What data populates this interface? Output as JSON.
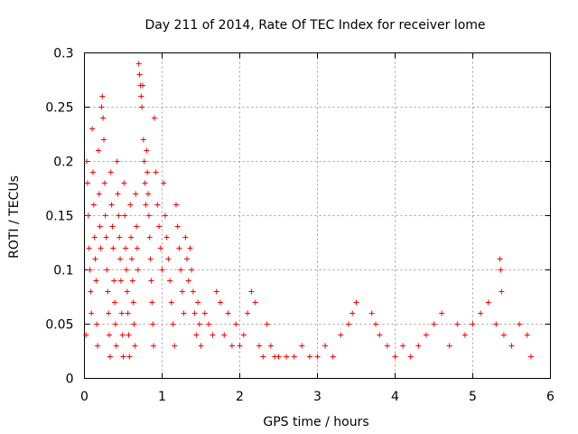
{
  "chart_data": {
    "type": "scatter",
    "title": "Day 211 of 2014, Rate Of TEC Index for receiver lome",
    "xlabel": "GPS time / hours",
    "ylabel": "ROTI / TECUs",
    "xlim": [
      0,
      6
    ],
    "ylim": [
      0,
      0.3
    ],
    "xticks": [
      0,
      1,
      2,
      3,
      4,
      5,
      6
    ],
    "yticks": [
      0,
      0.05,
      0.1,
      0.15,
      0.2,
      0.25,
      0.3
    ],
    "xtick_labels": [
      "0",
      "1",
      "2",
      "3",
      "4",
      "5",
      "6"
    ],
    "ytick_labels": [
      "0",
      "0.05",
      "0.1",
      "0.15",
      "0.2",
      "0.25",
      "0.3"
    ],
    "grid": true,
    "marker": "+",
    "series": [
      {
        "name": "ROTI",
        "color": "#ff0000",
        "points": [
          [
            0.02,
            0.04
          ],
          [
            0.03,
            0.2
          ],
          [
            0.04,
            0.18
          ],
          [
            0.05,
            0.15
          ],
          [
            0.06,
            0.12
          ],
          [
            0.07,
            0.1
          ],
          [
            0.08,
            0.08
          ],
          [
            0.09,
            0.06
          ],
          [
            0.1,
            0.23
          ],
          [
            0.11,
            0.19
          ],
          [
            0.12,
            0.16
          ],
          [
            0.13,
            0.13
          ],
          [
            0.14,
            0.11
          ],
          [
            0.15,
            0.09
          ],
          [
            0.16,
            0.05
          ],
          [
            0.17,
            0.03
          ],
          [
            0.18,
            0.21
          ],
          [
            0.19,
            0.17
          ],
          [
            0.2,
            0.14
          ],
          [
            0.21,
            0.12
          ],
          [
            0.22,
            0.25
          ],
          [
            0.23,
            0.26
          ],
          [
            0.24,
            0.24
          ],
          [
            0.25,
            0.22
          ],
          [
            0.26,
            0.18
          ],
          [
            0.27,
            0.15
          ],
          [
            0.28,
            0.13
          ],
          [
            0.29,
            0.1
          ],
          [
            0.3,
            0.08
          ],
          [
            0.31,
            0.06
          ],
          [
            0.32,
            0.04
          ],
          [
            0.33,
            0.02
          ],
          [
            0.34,
            0.19
          ],
          [
            0.35,
            0.16
          ],
          [
            0.36,
            0.14
          ],
          [
            0.37,
            0.12
          ],
          [
            0.38,
            0.09
          ],
          [
            0.39,
            0.07
          ],
          [
            0.4,
            0.05
          ],
          [
            0.41,
            0.03
          ],
          [
            0.42,
            0.2
          ],
          [
            0.43,
            0.17
          ],
          [
            0.44,
            0.15
          ],
          [
            0.45,
            0.13
          ],
          [
            0.46,
            0.11
          ],
          [
            0.47,
            0.09
          ],
          [
            0.48,
            0.06
          ],
          [
            0.49,
            0.04
          ],
          [
            0.5,
            0.02
          ],
          [
            0.51,
            0.18
          ],
          [
            0.52,
            0.15
          ],
          [
            0.53,
            0.12
          ],
          [
            0.54,
            0.1
          ],
          [
            0.55,
            0.08
          ],
          [
            0.56,
            0.06
          ],
          [
            0.57,
            0.04
          ],
          [
            0.58,
            0.02
          ],
          [
            0.59,
            0.16
          ],
          [
            0.6,
            0.13
          ],
          [
            0.61,
            0.11
          ],
          [
            0.62,
            0.09
          ],
          [
            0.63,
            0.07
          ],
          [
            0.64,
            0.05
          ],
          [
            0.65,
            0.03
          ],
          [
            0.66,
            0.17
          ],
          [
            0.67,
            0.14
          ],
          [
            0.68,
            0.12
          ],
          [
            0.69,
            0.1
          ],
          [
            0.7,
            0.29
          ],
          [
            0.71,
            0.28
          ],
          [
            0.72,
            0.27
          ],
          [
            0.73,
            0.26
          ],
          [
            0.74,
            0.25
          ],
          [
            0.75,
            0.27
          ],
          [
            0.76,
            0.22
          ],
          [
            0.77,
            0.2
          ],
          [
            0.78,
            0.18
          ],
          [
            0.79,
            0.16
          ],
          [
            0.8,
            0.21
          ],
          [
            0.81,
            0.19
          ],
          [
            0.82,
            0.17
          ],
          [
            0.83,
            0.15
          ],
          [
            0.84,
            0.13
          ],
          [
            0.85,
            0.11
          ],
          [
            0.86,
            0.09
          ],
          [
            0.87,
            0.07
          ],
          [
            0.88,
            0.05
          ],
          [
            0.89,
            0.03
          ],
          [
            0.9,
            0.24
          ],
          [
            0.92,
            0.19
          ],
          [
            0.94,
            0.16
          ],
          [
            0.96,
            0.14
          ],
          [
            0.98,
            0.12
          ],
          [
            1.0,
            0.1
          ],
          [
            1.02,
            0.18
          ],
          [
            1.04,
            0.15
          ],
          [
            1.06,
            0.13
          ],
          [
            1.08,
            0.11
          ],
          [
            1.1,
            0.09
          ],
          [
            1.12,
            0.07
          ],
          [
            1.14,
            0.05
          ],
          [
            1.16,
            0.03
          ],
          [
            1.18,
            0.16
          ],
          [
            1.2,
            0.14
          ],
          [
            1.22,
            0.12
          ],
          [
            1.24,
            0.1
          ],
          [
            1.26,
            0.08
          ],
          [
            1.28,
            0.06
          ],
          [
            1.3,
            0.13
          ],
          [
            1.32,
            0.11
          ],
          [
            1.34,
            0.09
          ],
          [
            1.36,
            0.12
          ],
          [
            1.38,
            0.1
          ],
          [
            1.4,
            0.08
          ],
          [
            1.42,
            0.06
          ],
          [
            1.44,
            0.04
          ],
          [
            1.46,
            0.07
          ],
          [
            1.48,
            0.05
          ],
          [
            1.5,
            0.03
          ],
          [
            1.55,
            0.06
          ],
          [
            1.6,
            0.05
          ],
          [
            1.65,
            0.04
          ],
          [
            1.7,
            0.08
          ],
          [
            1.75,
            0.07
          ],
          [
            1.8,
            0.04
          ],
          [
            1.85,
            0.06
          ],
          [
            1.9,
            0.03
          ],
          [
            1.95,
            0.05
          ],
          [
            2.0,
            0.03
          ],
          [
            2.05,
            0.04
          ],
          [
            2.1,
            0.06
          ],
          [
            2.15,
            0.08
          ],
          [
            2.2,
            0.07
          ],
          [
            2.25,
            0.03
          ],
          [
            2.3,
            0.02
          ],
          [
            2.35,
            0.05
          ],
          [
            2.4,
            0.03
          ],
          [
            2.45,
            0.02
          ],
          [
            2.5,
            0.02
          ],
          [
            2.6,
            0.02
          ],
          [
            2.7,
            0.02
          ],
          [
            2.8,
            0.03
          ],
          [
            2.9,
            0.02
          ],
          [
            3.0,
            0.02
          ],
          [
            3.1,
            0.03
          ],
          [
            3.2,
            0.02
          ],
          [
            3.3,
            0.04
          ],
          [
            3.4,
            0.05
          ],
          [
            3.45,
            0.06
          ],
          [
            3.5,
            0.07
          ],
          [
            3.7,
            0.06
          ],
          [
            3.75,
            0.05
          ],
          [
            3.8,
            0.04
          ],
          [
            3.9,
            0.03
          ],
          [
            4.0,
            0.02
          ],
          [
            4.1,
            0.03
          ],
          [
            4.2,
            0.02
          ],
          [
            4.3,
            0.03
          ],
          [
            4.4,
            0.04
          ],
          [
            4.5,
            0.05
          ],
          [
            4.6,
            0.06
          ],
          [
            4.7,
            0.03
          ],
          [
            4.8,
            0.05
          ],
          [
            4.9,
            0.04
          ],
          [
            5.0,
            0.05
          ],
          [
            5.1,
            0.06
          ],
          [
            5.2,
            0.07
          ],
          [
            5.3,
            0.05
          ],
          [
            5.35,
            0.11
          ],
          [
            5.36,
            0.1
          ],
          [
            5.37,
            0.08
          ],
          [
            5.4,
            0.04
          ],
          [
            5.5,
            0.03
          ],
          [
            5.6,
            0.05
          ],
          [
            5.7,
            0.04
          ],
          [
            5.75,
            0.02
          ]
        ]
      }
    ]
  }
}
